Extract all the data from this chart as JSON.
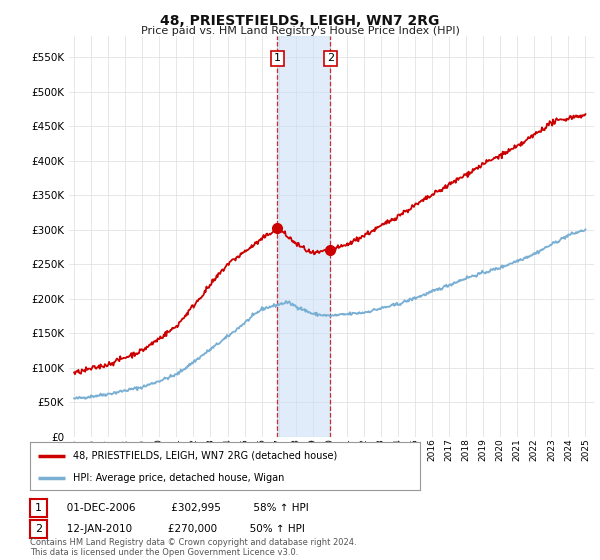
{
  "title": "48, PRIESTFIELDS, LEIGH, WN7 2RG",
  "subtitle": "Price paid vs. HM Land Registry's House Price Index (HPI)",
  "ylabel_ticks": [
    "£0",
    "£50K",
    "£100K",
    "£150K",
    "£200K",
    "£250K",
    "£300K",
    "£350K",
    "£400K",
    "£450K",
    "£500K",
    "£550K"
  ],
  "ytick_vals": [
    0,
    50000,
    100000,
    150000,
    200000,
    250000,
    300000,
    350000,
    400000,
    450000,
    500000,
    550000
  ],
  "ylim": [
    0,
    580000
  ],
  "xlim_start": 1994.7,
  "xlim_end": 2025.5,
  "transaction1_date": 2006.92,
  "transaction1_price": 302995,
  "transaction1_label": "1",
  "transaction2_date": 2010.04,
  "transaction2_price": 270000,
  "transaction2_label": "2",
  "shade_color": "#cce0f5",
  "shade_alpha": 0.6,
  "red_line_color": "#cc0000",
  "blue_line_color": "#7aafd4",
  "legend_label_red": "48, PRIESTFIELDS, LEIGH, WN7 2RG (detached house)",
  "legend_label_blue": "HPI: Average price, detached house, Wigan",
  "table_rows": [
    {
      "num": "1",
      "date": "01-DEC-2006",
      "price": "£302,995",
      "change": "58% ↑ HPI"
    },
    {
      "num": "2",
      "date": "12-JAN-2010",
      "price": "£270,000",
      "change": "50% ↑ HPI"
    }
  ],
  "footer": "Contains HM Land Registry data © Crown copyright and database right 2024.\nThis data is licensed under the Open Government Licence v3.0.",
  "background_color": "#ffffff",
  "grid_color": "#dddddd"
}
